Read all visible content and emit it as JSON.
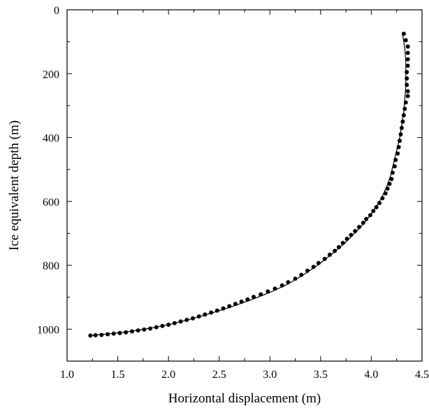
{
  "chart_data": {
    "type": "scatter",
    "xlabel": "Horizontal displacement (m)",
    "ylabel": "Ice equivalent depth (m)",
    "xlim": [
      1.0,
      4.5
    ],
    "ylim": [
      0,
      1100
    ],
    "y_inverted": true,
    "grid": false,
    "x_ticks": [
      1.0,
      1.5,
      2.0,
      2.5,
      3.0,
      3.5,
      4.0,
      4.5
    ],
    "x_tick_labels": [
      "1.0",
      "1.5",
      "2.0",
      "2.5",
      "3.0",
      "3.5",
      "4.0",
      "4.5"
    ],
    "y_ticks": [
      0,
      200,
      400,
      600,
      800,
      1000
    ],
    "y_tick_labels": [
      "0",
      "200",
      "400",
      "600",
      "800",
      "1000"
    ],
    "colors": {
      "points": "#000000",
      "line": "#000000",
      "axes": "#000000"
    },
    "series": [
      {
        "kind": "points",
        "points": [
          [
            4.32,
            75
          ],
          [
            4.34,
            95
          ],
          [
            4.36,
            115
          ],
          [
            4.36,
            135
          ],
          [
            4.36,
            155
          ],
          [
            4.36,
            175
          ],
          [
            4.35,
            195
          ],
          [
            4.35,
            215
          ],
          [
            4.35,
            235
          ],
          [
            4.36,
            255
          ],
          [
            4.36,
            270
          ],
          [
            4.34,
            290
          ],
          [
            4.33,
            310
          ],
          [
            4.32,
            330
          ],
          [
            4.31,
            350
          ],
          [
            4.3,
            370
          ],
          [
            4.29,
            390
          ],
          [
            4.28,
            410
          ],
          [
            4.27,
            430
          ],
          [
            4.26,
            450
          ],
          [
            4.24,
            470
          ],
          [
            4.23,
            490
          ],
          [
            4.21,
            510
          ],
          [
            4.2,
            530
          ],
          [
            4.18,
            545
          ],
          [
            4.16,
            560
          ],
          [
            4.14,
            575
          ],
          [
            4.11,
            590
          ],
          [
            4.08,
            605
          ],
          [
            4.05,
            618
          ],
          [
            4.02,
            630
          ],
          [
            3.99,
            643
          ],
          [
            3.95,
            655
          ],
          [
            3.92,
            667
          ],
          [
            3.88,
            680
          ],
          [
            3.84,
            693
          ],
          [
            3.8,
            705
          ],
          [
            3.76,
            717
          ],
          [
            3.72,
            730
          ],
          [
            3.68,
            743
          ],
          [
            3.64,
            755
          ],
          [
            3.59,
            767
          ],
          [
            3.54,
            780
          ],
          [
            3.48,
            793
          ],
          [
            3.43,
            805
          ],
          [
            3.37,
            817
          ],
          [
            3.31,
            830
          ],
          [
            3.25,
            842
          ],
          [
            3.18,
            853
          ],
          [
            3.12,
            863
          ],
          [
            3.05,
            873
          ],
          [
            2.98,
            882
          ],
          [
            2.91,
            891
          ],
          [
            2.84,
            899
          ],
          [
            2.78,
            907
          ],
          [
            2.72,
            914
          ],
          [
            2.66,
            921
          ],
          [
            2.6,
            928
          ],
          [
            2.54,
            935
          ],
          [
            2.48,
            942
          ],
          [
            2.42,
            948
          ],
          [
            2.36,
            954
          ],
          [
            2.3,
            960
          ],
          [
            2.24,
            966
          ],
          [
            2.18,
            971
          ],
          [
            2.12,
            976
          ],
          [
            2.06,
            981
          ],
          [
            2.0,
            986
          ],
          [
            1.94,
            990
          ],
          [
            1.88,
            994
          ],
          [
            1.82,
            998
          ],
          [
            1.76,
            1001
          ],
          [
            1.7,
            1004
          ],
          [
            1.64,
            1007
          ],
          [
            1.58,
            1010
          ],
          [
            1.52,
            1012
          ],
          [
            1.46,
            1014
          ],
          [
            1.4,
            1016
          ],
          [
            1.34,
            1018
          ],
          [
            1.28,
            1019
          ],
          [
            1.23,
            1020
          ]
        ]
      },
      {
        "kind": "line",
        "points": [
          [
            4.31,
            80
          ],
          [
            4.33,
            120
          ],
          [
            4.34,
            160
          ],
          [
            4.34,
            200
          ],
          [
            4.34,
            240
          ],
          [
            4.33,
            280
          ],
          [
            4.32,
            320
          ],
          [
            4.3,
            360
          ],
          [
            4.28,
            400
          ],
          [
            4.25,
            440
          ],
          [
            4.22,
            480
          ],
          [
            4.19,
            520
          ],
          [
            4.15,
            555
          ],
          [
            4.1,
            590
          ],
          [
            4.03,
            625
          ],
          [
            3.95,
            660
          ],
          [
            3.85,
            695
          ],
          [
            3.74,
            730
          ],
          [
            3.61,
            765
          ],
          [
            3.47,
            800
          ],
          [
            3.33,
            830
          ],
          [
            3.17,
            860
          ],
          [
            3.0,
            885
          ],
          [
            2.8,
            910
          ],
          [
            2.6,
            932
          ],
          [
            2.4,
            952
          ],
          [
            2.2,
            970
          ],
          [
            2.0,
            986
          ],
          [
            1.8,
            998
          ],
          [
            1.6,
            1008
          ],
          [
            1.4,
            1015
          ],
          [
            1.23,
            1020
          ]
        ]
      }
    ]
  }
}
